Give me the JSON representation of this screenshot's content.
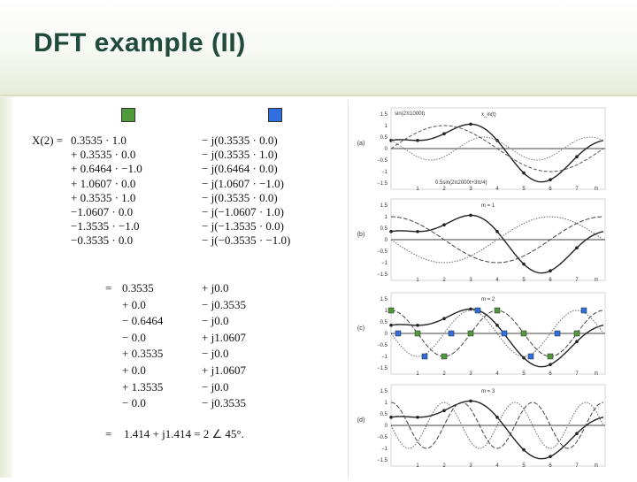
{
  "slide": {
    "title": "DFT example (II)",
    "legend": [
      {
        "name": "green-square",
        "color": "#4f9a3a"
      },
      {
        "name": "blue-square",
        "color": "#2f6fe0"
      }
    ]
  },
  "equation": {
    "lhs": "X(2) =",
    "real_terms": [
      "0.3535 · 1.0",
      "+ 0.3535 · 0.0",
      "+ 0.6464 · −1.0",
      "+ 1.0607 · 0.0",
      "+ 0.3535 · 1.0",
      "−1.0607 · 0.0",
      "−1.3535 · −1.0",
      "−0.3535 · 0.0"
    ],
    "imag_terms": [
      "− j(0.3535 · 0.0)",
      "− j(0.3535 · 1.0)",
      "− j(0.6464 · 0.0)",
      "− j(1.0607 · −1.0)",
      "− j(0.3535 · 0.0)",
      "− j(−1.0607 · 1.0)",
      "− j(−1.3535 · 0.0)",
      "− j(−0.3535 · −1.0)"
    ],
    "eq_sign": "=",
    "real_values": [
      "0.3535",
      "+ 0.0",
      "− 0.6464",
      "− 0.0",
      "+ 0.3535",
      "+ 0.0",
      "+ 1.3535",
      "− 0.0"
    ],
    "imag_values": [
      "+ j0.0",
      "− j0.3535",
      "− j0.0",
      "+ j1.0607",
      "− j0.0",
      "+ j1.0607",
      "− j0.0",
      "− j0.3535"
    ],
    "final_eq_sign": "=",
    "result": "1.414 + j1.414 = 2 ∠ 45°."
  },
  "figure": {
    "colors": {
      "green": "#4f9a3a",
      "blue": "#2f6fe0"
    },
    "panel_labels": [
      "(a)",
      "(b)",
      "(c)",
      "(d)"
    ],
    "y_ticks": [
      "1.5",
      "1",
      "0.5",
      "0",
      "−0.5",
      "−1",
      "−1.5"
    ],
    "x_ticks": [
      "1",
      "2",
      "3",
      "4",
      "5",
      "6",
      "7"
    ],
    "x_axis_label": "n",
    "annotations": {
      "a_sin1": "sin(2π1000t)",
      "a_xin": "x_in(t)",
      "a_sin2": "0.5sin(2π2000t+3π/4)",
      "b_m": "m = 1",
      "c_m": "m = 2",
      "d_m": "m = 3"
    }
  }
}
